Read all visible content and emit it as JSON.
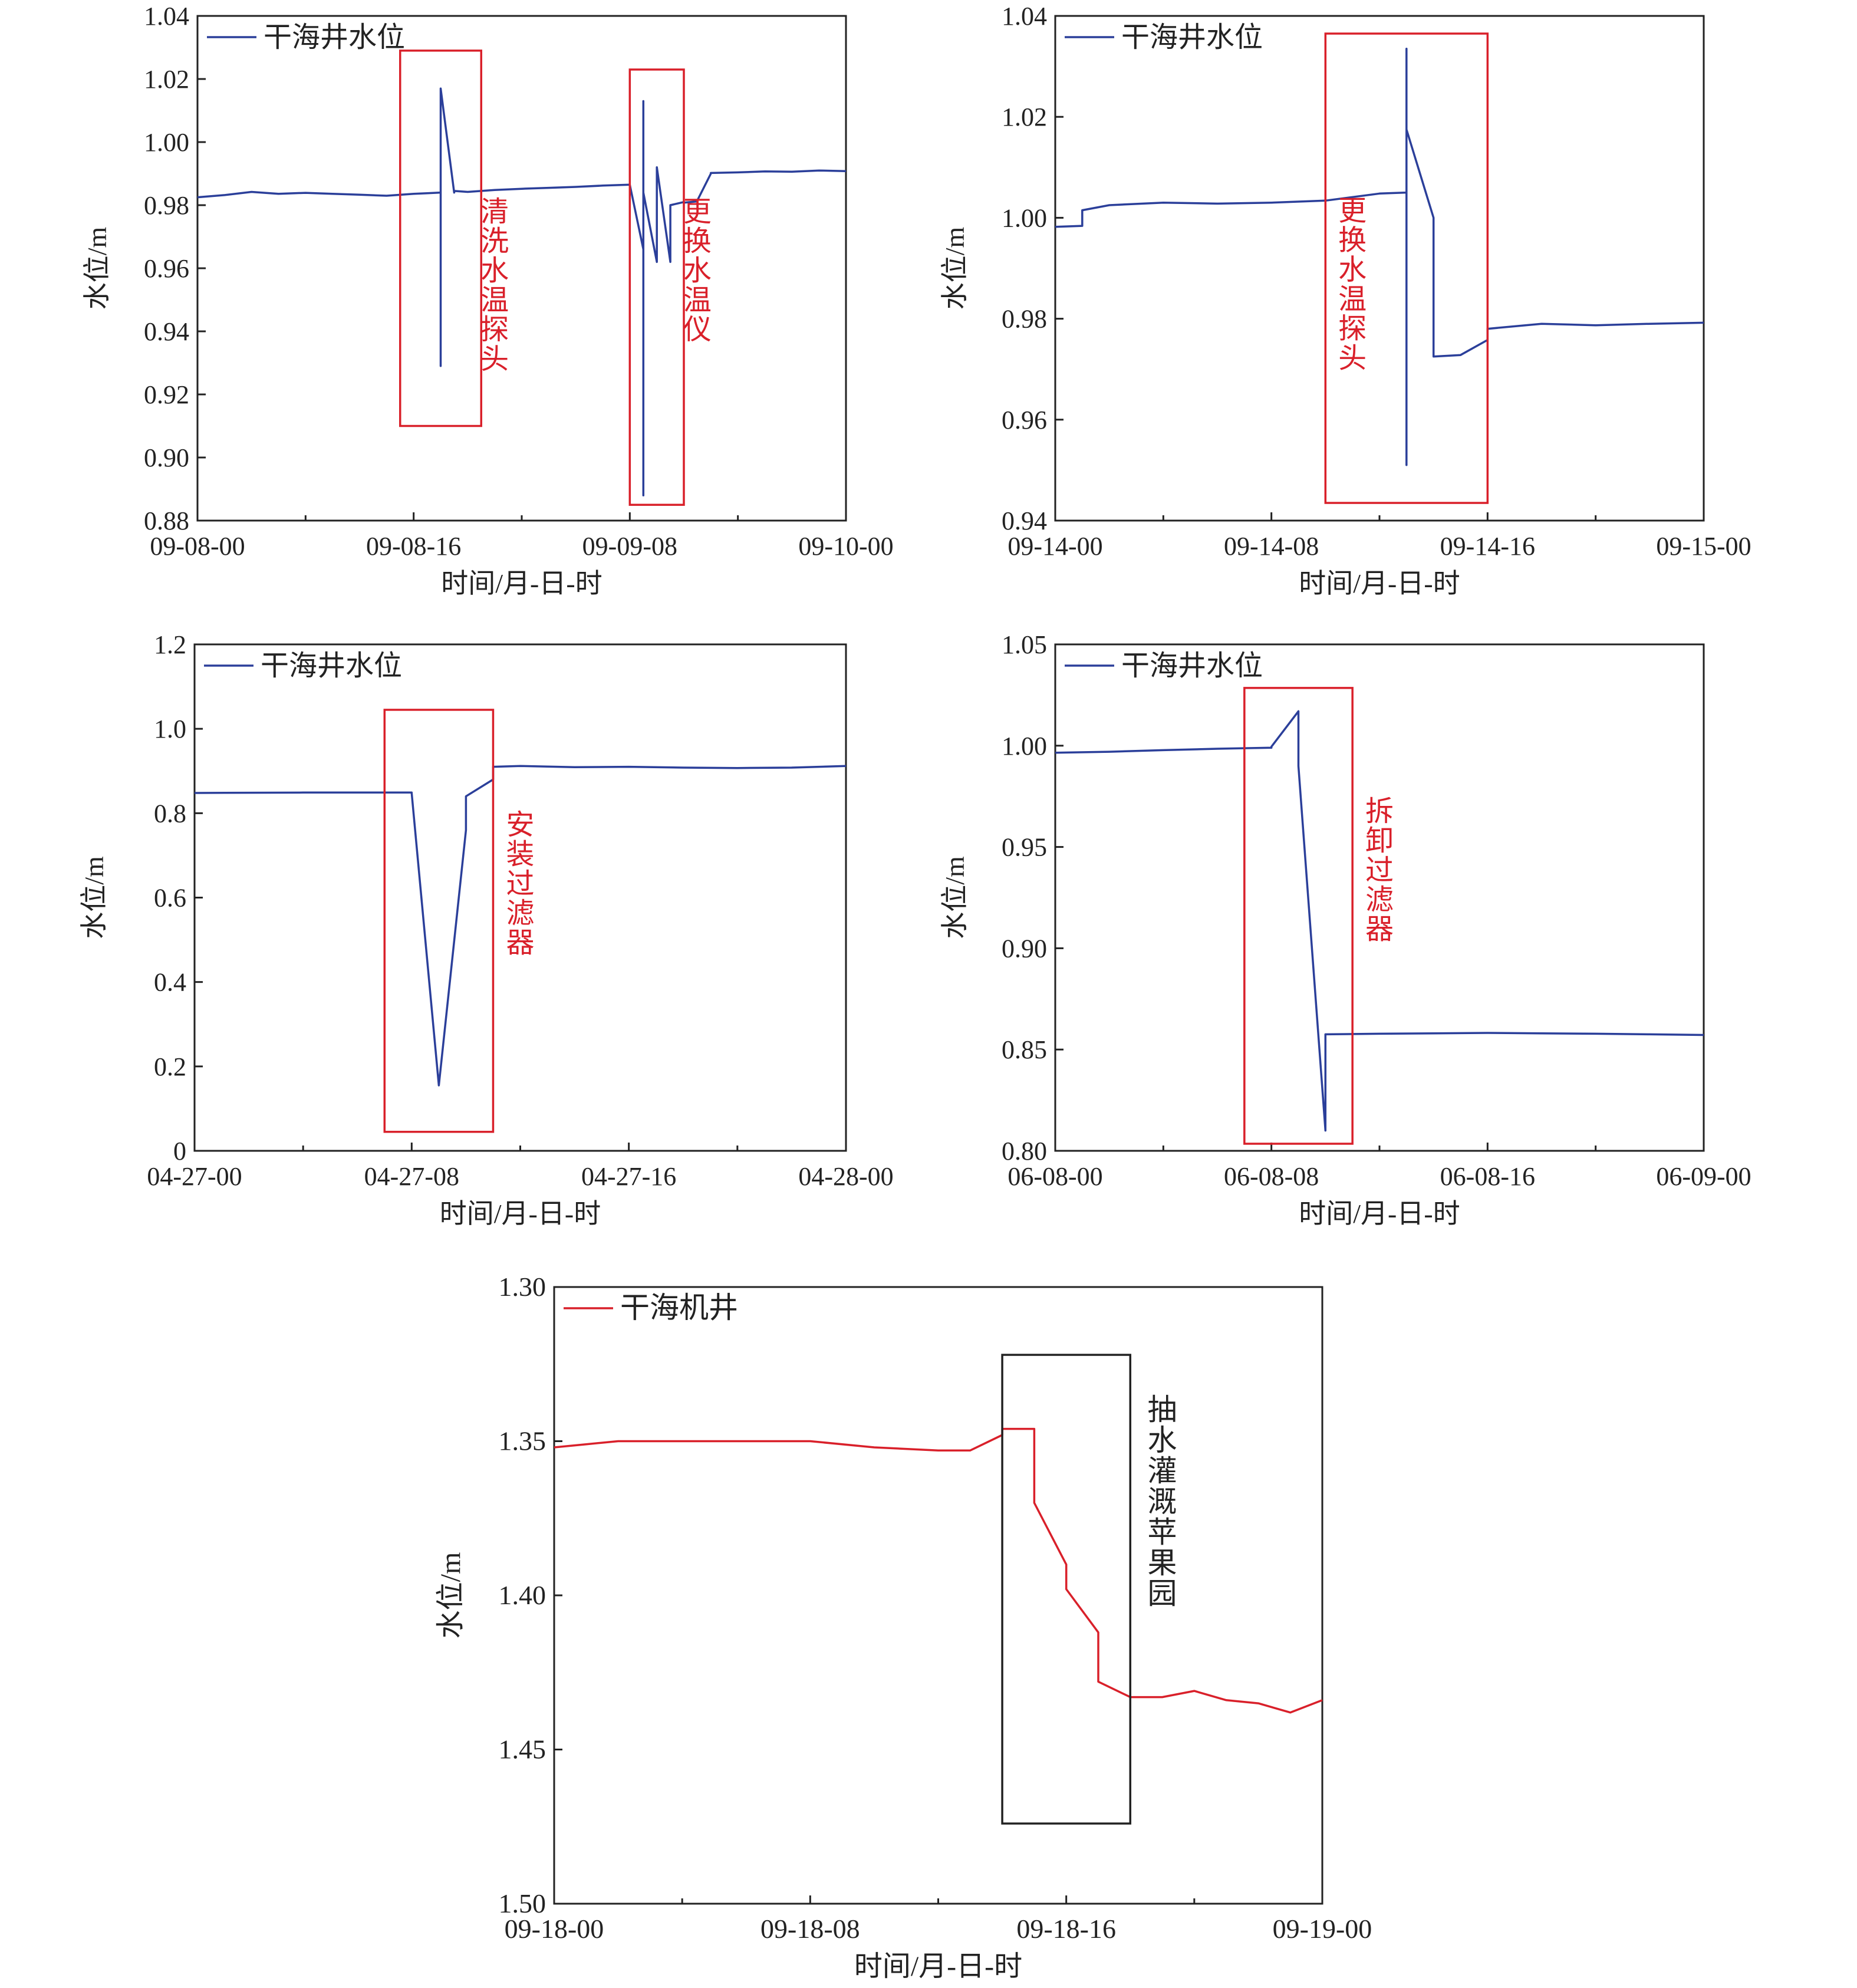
{
  "chart_data": [
    {
      "type": "line",
      "legend_placement": "top-left",
      "xlabel": "时间/月-日-时",
      "ylabel": "水位/m",
      "x_range": [
        "09-08-00",
        "09-10-00"
      ],
      "ylim": [
        0.88,
        1.04
      ],
      "y_ticks": [
        "0.88",
        "0.90",
        "0.92",
        "0.94",
        "0.96",
        "0.98",
        "1.00",
        "1.02",
        "1.04"
      ],
      "x_ticks": [
        "09-08-00",
        "09-08-16",
        "09-09-08",
        "09-10-00"
      ],
      "series": [
        {
          "name": "干海井水位",
          "color": "#2b3f9a",
          "x": [
            "09-08-00",
            "09-08-02",
            "09-08-04",
            "09-08-06",
            "09-08-08",
            "09-08-10",
            "09-08-12",
            "09-08-14",
            "09-08-16",
            "09-08-17",
            "09-08-18",
            "09-08-18",
            "09-08-18",
            "09-08-19",
            "09-08-19",
            "09-08-20",
            "09-08-22",
            "09-09-00",
            "09-09-02",
            "09-09-04",
            "09-09-06",
            "09-09-08",
            "09-09-09",
            "09-09-09",
            "09-09-09",
            "09-09-09",
            "09-09-10",
            "09-09-10",
            "09-09-11",
            "09-09-11",
            "09-09-12",
            "09-09-12",
            "09-09-13",
            "09-09-13",
            "09-09-14",
            "09-09-14",
            "09-09-16",
            "09-09-18",
            "09-09-20",
            "09-09-22",
            "09-10-00"
          ],
          "y": [
            0.9825,
            0.9832,
            0.9842,
            0.9836,
            0.9839,
            0.9836,
            0.9833,
            0.983,
            0.9836,
            0.9838,
            0.984,
            0.929,
            1.017,
            0.984,
            0.9845,
            0.9842,
            0.9848,
            0.9852,
            0.9855,
            0.9858,
            0.9862,
            0.9865,
            0.966,
            0.888,
            1.013,
            0.984,
            0.962,
            0.992,
            0.962,
            0.98,
            0.981,
            0.9808,
            0.9812,
            0.9815,
            0.99,
            0.9902,
            0.9904,
            0.9907,
            0.9906,
            0.991,
            0.9908
          ]
        }
      ],
      "annotations": [
        "清洗水温探头",
        "更换水温仪"
      ]
    },
    {
      "type": "line",
      "legend_placement": "top-left",
      "xlabel": "时间/月-日-时",
      "ylabel": "水位/m",
      "x_range": [
        "09-14-00",
        "09-15-00"
      ],
      "ylim": [
        0.94,
        1.04
      ],
      "y_ticks": [
        "0.94",
        "0.96",
        "0.98",
        "1.00",
        "1.02",
        "1.04"
      ],
      "x_ticks": [
        "09-14-00",
        "09-14-08",
        "09-14-16",
        "09-15-00"
      ],
      "series": [
        {
          "name": "干海井水位",
          "color": "#2b3f9a",
          "x": [
            "09-14-00",
            "09-14-01",
            "09-14-01",
            "09-14-02",
            "09-14-04",
            "09-14-06",
            "09-14-08",
            "09-14-10",
            "09-14-12",
            "09-14-13",
            "09-14-13",
            "09-14-13",
            "09-14-13",
            "09-14-14",
            "09-14-14",
            "09-14-15",
            "09-14-16",
            "09-14-16",
            "09-14-18",
            "09-14-20",
            "09-14-22",
            "09-15-00"
          ],
          "y": [
            0.9982,
            0.9984,
            1.0015,
            1.0025,
            1.003,
            1.0028,
            1.003,
            1.0034,
            1.0048,
            1.005,
            0.951,
            1.0335,
            1.0175,
            1.0,
            0.9725,
            0.9728,
            0.9758,
            0.978,
            0.979,
            0.9787,
            0.979,
            0.9792
          ]
        }
      ],
      "annotations": [
        "更换水温探头"
      ]
    },
    {
      "type": "line",
      "legend_placement": "top-left",
      "xlabel": "时间/月-日-时",
      "ylabel": "水位/m",
      "x_range": [
        "04-27-00",
        "04-28-00"
      ],
      "ylim": [
        0,
        1.2
      ],
      "y_ticks": [
        "0",
        "0.2",
        "0.4",
        "0.6",
        "0.8",
        "1.0",
        "1.2"
      ],
      "x_ticks": [
        "04-27-00",
        "04-27-08",
        "04-27-16",
        "04-28-00"
      ],
      "series": [
        {
          "name": "干海井水位",
          "color": "#2b3f9a",
          "x": [
            "04-27-00",
            "04-27-04",
            "04-27-08",
            "04-27-08",
            "04-27-09",
            "04-27-09",
            "04-27-10",
            "04-27-10",
            "04-27-10",
            "04-27-11",
            "04-27-11",
            "04-27-12",
            "04-27-14",
            "04-27-16",
            "04-27-18",
            "04-27-20",
            "04-27-22",
            "04-28-00"
          ],
          "y": [
            0.848,
            0.849,
            0.849,
            0.848,
            0.155,
            0.155,
            0.76,
            0.79,
            0.84,
            0.88,
            0.91,
            0.912,
            0.909,
            0.91,
            0.908,
            0.907,
            0.908,
            0.912
          ]
        }
      ],
      "annotations": [
        "安装过滤器"
      ]
    },
    {
      "type": "line",
      "legend_placement": "top-left",
      "xlabel": "时间/月-日-时",
      "ylabel": "水位/m",
      "x_range": [
        "06-08-00",
        "06-09-00"
      ],
      "ylim": [
        0.8,
        1.05
      ],
      "y_ticks": [
        "0.80",
        "0.85",
        "0.90",
        "0.95",
        "1.00",
        "1.05"
      ],
      "x_ticks": [
        "06-08-00",
        "06-08-08",
        "06-08-16",
        "06-09-00"
      ],
      "series": [
        {
          "name": "干海井水位",
          "color": "#2b3f9a",
          "x": [
            "06-08-00",
            "06-08-02",
            "06-08-04",
            "06-08-06",
            "06-08-08",
            "06-08-08",
            "06-08-09",
            "06-08-09",
            "06-08-09",
            "06-08-10",
            "06-08-10",
            "06-08-10",
            "06-08-12",
            "06-08-14",
            "06-08-16",
            "06-08-18",
            "06-08-20",
            "06-08-22",
            "06-09-00"
          ],
          "y": [
            0.9965,
            0.997,
            0.9978,
            0.9985,
            0.999,
            0.9995,
            1.017,
            0.992,
            0.99,
            0.81,
            0.811,
            0.8575,
            0.8578,
            0.858,
            0.8582,
            0.858,
            0.8578,
            0.8575,
            0.8572
          ]
        }
      ],
      "annotations": [
        "拆卸过滤器"
      ]
    },
    {
      "type": "line",
      "legend_placement": "top-left",
      "xlabel": "时间/月-日-时",
      "ylabel": "水位/m",
      "y_inverted": true,
      "x_range": [
        "09-18-00",
        "09-19-00"
      ],
      "ylim": [
        1.3,
        1.5
      ],
      "y_ticks": [
        "1.30",
        "1.35",
        "1.40",
        "1.45",
        "1.50"
      ],
      "x_ticks": [
        "09-18-00",
        "09-18-08",
        "09-18-16",
        "09-19-00"
      ],
      "series": [
        {
          "name": "干海机井",
          "color": "#d9202a",
          "x": [
            "09-18-00",
            "09-18-01",
            "09-18-02",
            "09-18-04",
            "09-18-06",
            "09-18-08",
            "09-18-10",
            "09-18-12",
            "09-18-13",
            "09-18-14",
            "09-18-14",
            "09-18-15",
            "09-18-15",
            "09-18-16",
            "09-18-16",
            "09-18-17",
            "09-18-17",
            "09-18-18",
            "09-18-19",
            "09-18-20",
            "09-18-21",
            "09-18-22",
            "09-18-23",
            "09-19-00"
          ],
          "y": [
            1.352,
            1.351,
            1.35,
            1.35,
            1.35,
            1.35,
            1.352,
            1.353,
            1.353,
            1.348,
            1.346,
            1.346,
            1.37,
            1.39,
            1.398,
            1.412,
            1.428,
            1.433,
            1.433,
            1.431,
            1.434,
            1.435,
            1.438,
            1.434
          ]
        }
      ],
      "annotations": [
        "抽水灌溉苹果园"
      ]
    }
  ]
}
